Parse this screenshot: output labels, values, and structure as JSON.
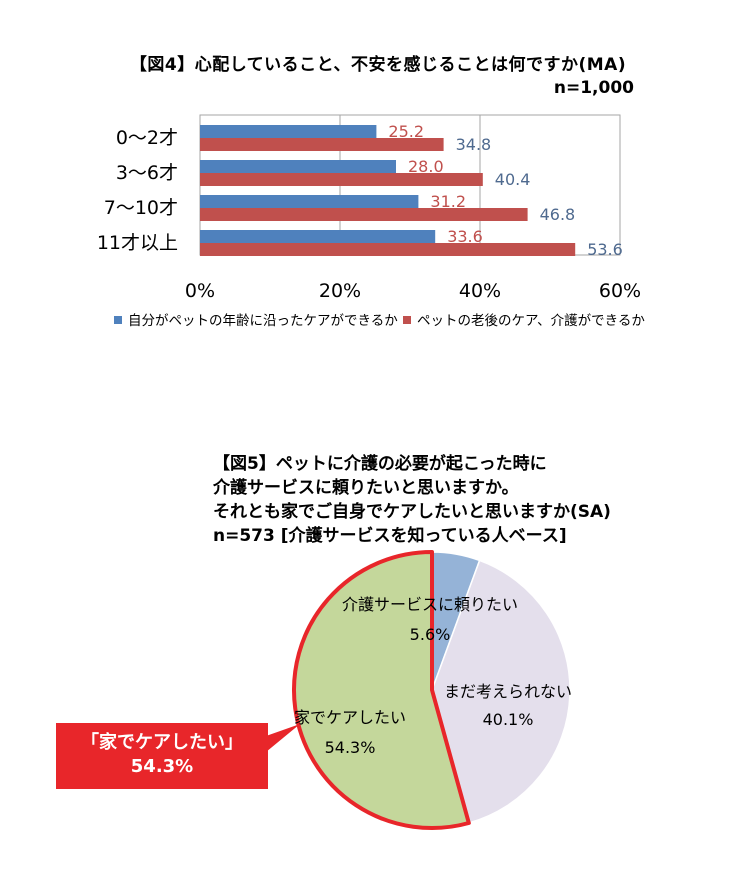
{
  "chart_data": [
    {
      "type": "bar",
      "orientation": "horizontal",
      "title": "【図4】心配していること、不安を感じることは何ですか(MA)",
      "sample": "n=1,000",
      "categories": [
        "0～2才",
        "3～6才",
        "7～10才",
        "11才以上"
      ],
      "series": [
        {
          "name": "自分がペットの年齢に沿ったケアができるか",
          "values": [
            25.2,
            28.0,
            31.2,
            33.6
          ],
          "color": "#4f81bd",
          "labels": [
            "25.2",
            "28.0",
            "31.2",
            "33.6"
          ]
        },
        {
          "name": "ペットの老後のケア、介護ができるか",
          "values": [
            34.8,
            40.4,
            46.8,
            53.6
          ],
          "color": "#c0504d",
          "labels": [
            "34.8",
            "40.4",
            "46.8",
            "53.6"
          ]
        }
      ],
      "xlim": [
        0,
        60
      ],
      "ticks": [
        0,
        20,
        40,
        60
      ],
      "tick_labels": [
        "0%",
        "20%",
        "40%",
        "60%"
      ],
      "grid": true,
      "legend": "bottom"
    },
    {
      "type": "pie",
      "title_lines": [
        "【図5】ペットに介護の必要が起こった時に",
        "介護サービスに頼りたいと思いますか。",
        "それとも家でご自身でケアしたいと思いますか(SA)",
        "n=573 [介護サービスを知っている人ベース]"
      ],
      "slices": [
        {
          "label": "介護サービスに頼りたい",
          "value": 5.6,
          "value_label": "5.6%",
          "color": "#95b3d7"
        },
        {
          "label": "まだ考えられない",
          "value": 40.1,
          "value_label": "40.1%",
          "color": "#e4dfec"
        },
        {
          "label": "家でケアしたい",
          "value": 54.3,
          "value_label": "54.3%",
          "color": "#c4d79b",
          "highlight": "#e8262a"
        }
      ],
      "callout": {
        "line1": "「家でケアしたい」",
        "line2": "54.3%"
      }
    }
  ]
}
